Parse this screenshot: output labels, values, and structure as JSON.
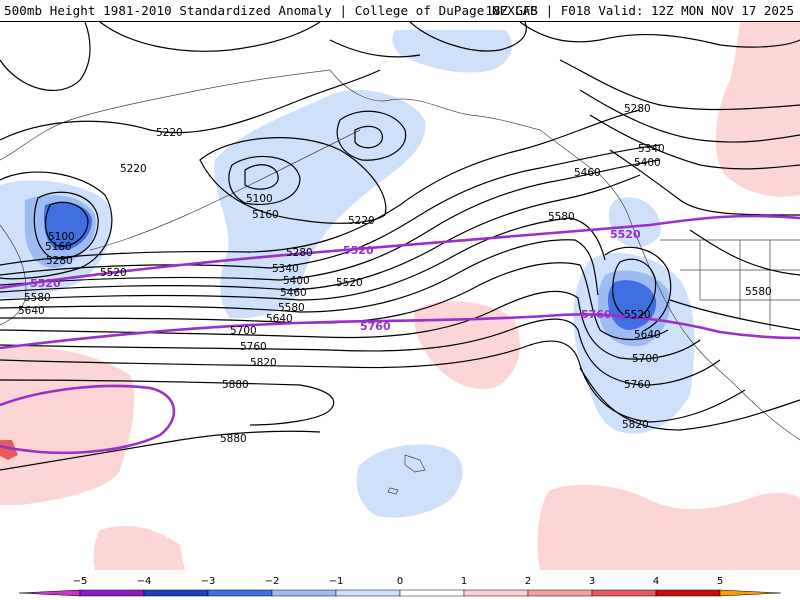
{
  "header": {
    "title": "500mb Height 1981-2010 Standardized Anomaly | College of DuPage NEXLAB",
    "run_info": "18Z GFS | F018 Valid: 12Z MON NOV 17 2025"
  },
  "contour_labels": {
    "l5220a": "5220",
    "l5220b": "5220",
    "l5220c": "5220",
    "l5100a": "5100",
    "l5160a": "5160",
    "l5100b": "5100",
    "l5160b": "5160",
    "l5280a": "5280",
    "l5280b": "5280",
    "l5280c": "5280",
    "l5340a": "5340",
    "l5340b": "5340",
    "l5400a": "5400",
    "l5400b": "5400",
    "l5460a": "5460",
    "l5460b": "5460",
    "l5520a": "5520",
    "l5520b": "5520",
    "l5580a": "5580",
    "l5580b": "5580",
    "l5580c": "5580",
    "l5640a": "5640",
    "l5640b": "5640",
    "l5640c": "5640",
    "l5700a": "5700",
    "l5700b": "5700",
    "l5760a": "5760",
    "l5760b": "5760",
    "l5820a": "5820",
    "l5820b": "5820",
    "l5880a": "5880",
    "l5880b": "5880",
    "l5520c": "5520"
  },
  "reference_labels": {
    "p5520a": "5520",
    "p5520b": "5520",
    "p5520c": "5520",
    "p5760a": "5760",
    "p5760b": "5760"
  },
  "legend": {
    "ticks": [
      "−5",
      "−4",
      "−3",
      "−2",
      "−1",
      "0",
      "1",
      "2",
      "3",
      "4",
      "5"
    ],
    "colors": [
      "#cc33cc",
      "#8a1fc2",
      "#1f3fbf",
      "#3f6fe0",
      "#9ebcf4",
      "#cfe0fb",
      "#ffffff",
      "#fcd0d0",
      "#f4a0a0",
      "#e85a5a",
      "#c41010",
      "#ff9900"
    ]
  },
  "colors": {
    "reference_contour": "#9b2fc9",
    "contour": "#000000",
    "neg_anomaly_light": "#cfe0fb",
    "pos_anomaly_light": "#fcd6d6"
  }
}
